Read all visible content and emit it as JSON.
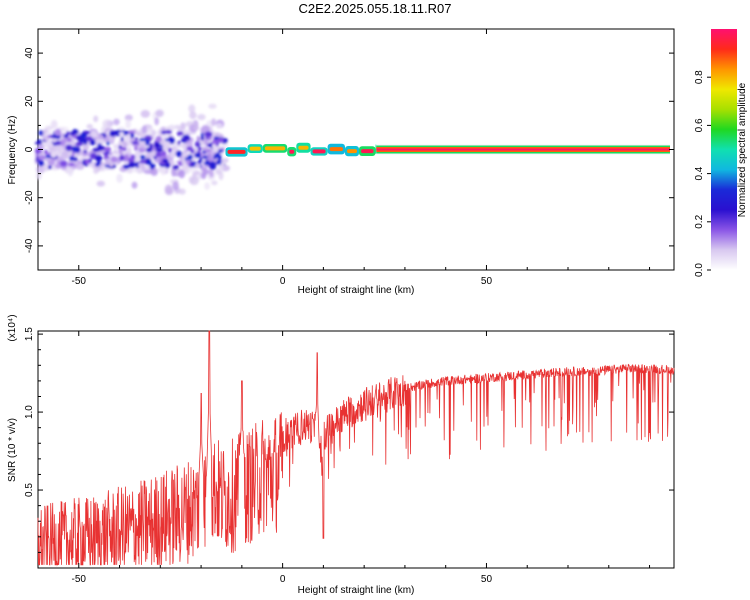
{
  "title": "C2E2.2025.055.18.11.R07",
  "colorbar": {
    "label": "Normalized spectral amplitude",
    "ticks": [
      0.0,
      0.2,
      0.4,
      0.6,
      0.8
    ],
    "tick_labels": [
      "0.0",
      "0.2",
      "0.4",
      "0.6",
      "0.8"
    ],
    "range": [
      0,
      1
    ],
    "colormap": [
      "#ffffff",
      "#d8c8f0",
      "#8a55e6",
      "#2a10d0",
      "#1a2ad8",
      "#10b8e0",
      "#10e0b0",
      "#20d820",
      "#a8e000",
      "#f0e800",
      "#ff9400",
      "#ff2a1a",
      "#ff1070"
    ]
  },
  "chart_data": [
    {
      "type": "heatmap",
      "title": "",
      "xlabel": "Height of straight line (km)",
      "ylabel": "Frequency (Hz)",
      "xlim": [
        -60,
        96
      ],
      "ylim": [
        -50,
        50
      ],
      "xticks": [
        -50,
        0,
        50
      ],
      "yticks": [
        -40,
        -20,
        0,
        20,
        40
      ],
      "xtick_labels": [
        "-50",
        "0",
        "50"
      ],
      "ytick_labels": [
        "-40",
        "-20",
        "0",
        "20",
        "40"
      ],
      "grid": false,
      "description_regions": [
        {
          "x": [
            -60,
            -14
          ],
          "freq_center": 0,
          "freq_spread": 10,
          "amplitude": [
            0.05,
            0.35
          ],
          "pattern": "scattered"
        },
        {
          "x": [
            -14,
            23
          ],
          "freq_center": 0,
          "freq_spread": 1.5,
          "amplitude": [
            0.3,
            0.95
          ],
          "pattern": "broken_band"
        },
        {
          "x": [
            23,
            96
          ],
          "freq_center": 0,
          "freq_spread": 1.2,
          "amplitude": [
            0.9,
            1.0
          ],
          "pattern": "continuous_band"
        }
      ]
    },
    {
      "type": "line",
      "title": "",
      "xlabel": "Height of straight line (km)",
      "ylabel": "SNR (10 * v/v)",
      "ylabel_multiplier": "(x10⁴)",
      "xlim": [
        -60,
        96
      ],
      "ylim": [
        0,
        1.52
      ],
      "xticks": [
        -50,
        0,
        50
      ],
      "yticks": [
        0.5,
        1.0,
        1.5
      ],
      "xtick_labels": [
        "-50",
        "0",
        "50"
      ],
      "ytick_labels": [
        "0.5",
        "1.0",
        "1.5"
      ],
      "grid": false,
      "color": "#e83232",
      "series": [
        {
          "x": [
            -60,
            -55,
            -50,
            -45,
            -40,
            -35,
            -30,
            -25,
            -20,
            -17,
            -15,
            -12,
            -10,
            -7,
            -5,
            -2,
            0,
            3,
            5,
            8,
            9,
            10,
            15,
            20,
            25,
            30,
            35,
            40,
            45,
            50,
            55,
            60,
            65,
            70,
            75,
            80,
            85,
            90,
            96
          ],
          "values": [
            0.2,
            0.22,
            0.24,
            0.26,
            0.3,
            0.34,
            0.4,
            0.46,
            0.55,
            0.7,
            0.6,
            0.62,
            0.68,
            0.72,
            0.8,
            0.82,
            0.85,
            0.88,
            0.92,
            0.9,
            0.7,
            0.85,
            0.98,
            1.05,
            1.1,
            1.15,
            1.18,
            1.2,
            1.21,
            1.22,
            1.23,
            1.24,
            1.25,
            1.26,
            1.26,
            1.27,
            1.28,
            1.28,
            1.27
          ],
          "peaks": [
            {
              "x": -18,
              "value": 1.52
            },
            {
              "x": -20,
              "value": 1.12
            },
            {
              "x": -10,
              "value": 1.2
            },
            {
              "x": 8.5,
              "value": 1.38
            },
            {
              "x": 10,
              "value": 0.19
            }
          ]
        }
      ]
    }
  ]
}
